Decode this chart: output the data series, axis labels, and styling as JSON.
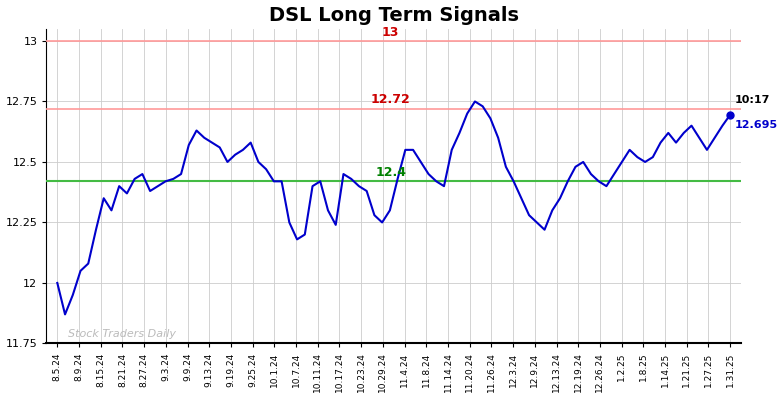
{
  "title": "DSL Long Term Signals",
  "title_fontsize": 14,
  "title_fontweight": "bold",
  "background_color": "#ffffff",
  "line_color": "#0000cc",
  "line_width": 1.5,
  "ylim": [
    11.75,
    13.05
  ],
  "yticks": [
    11.75,
    12.0,
    12.25,
    12.5,
    12.75,
    13.0
  ],
  "ytick_labels": [
    "11.75",
    "12",
    "12.25",
    "12.5",
    "12.75",
    "13"
  ],
  "red_line_1": 13.0,
  "red_line_2": 12.72,
  "green_line": 12.42,
  "red_label_1": "13",
  "red_label_2": "12.72",
  "green_label": "12.4",
  "annotation_time": "10:17",
  "annotation_value": "12.695",
  "watermark": "Stock Traders Daily",
  "x_labels": [
    "8.5.24",
    "8.9.24",
    "8.15.24",
    "8.21.24",
    "8.27.24",
    "9.3.24",
    "9.9.24",
    "9.13.24",
    "9.19.24",
    "9.25.24",
    "10.1.24",
    "10.7.24",
    "10.11.24",
    "10.17.24",
    "10.23.24",
    "10.29.24",
    "11.4.24",
    "11.8.24",
    "11.14.24",
    "11.20.24",
    "11.26.24",
    "12.3.24",
    "12.9.24",
    "12.13.24",
    "12.19.24",
    "12.26.24",
    "1.2.25",
    "1.8.25",
    "1.14.25",
    "1.21.25",
    "1.27.25",
    "1.31.25"
  ],
  "y_values": [
    12.0,
    11.87,
    11.95,
    12.05,
    12.08,
    12.22,
    12.35,
    12.3,
    12.4,
    12.37,
    12.43,
    12.45,
    12.38,
    12.4,
    12.42,
    12.43,
    12.45,
    12.57,
    12.63,
    12.6,
    12.58,
    12.56,
    12.5,
    12.53,
    12.55,
    12.58,
    12.5,
    12.47,
    12.42,
    12.42,
    12.25,
    12.18,
    12.2,
    12.4,
    12.42,
    12.3,
    12.24,
    12.45,
    12.43,
    12.4,
    12.38,
    12.28,
    12.25,
    12.3,
    12.43,
    12.55,
    12.55,
    12.5,
    12.45,
    12.42,
    12.4,
    12.55,
    12.62,
    12.7,
    12.75,
    12.73,
    12.68,
    12.6,
    12.48,
    12.42,
    12.35,
    12.28,
    12.25,
    12.22,
    12.3,
    12.35,
    12.42,
    12.48,
    12.5,
    12.45,
    12.42,
    12.4,
    12.45,
    12.5,
    12.55,
    12.52,
    12.5,
    12.52,
    12.58,
    12.62,
    12.58,
    12.62,
    12.65,
    12.6,
    12.55,
    12.6,
    12.65,
    12.695
  ],
  "grid_color": "#cccccc",
  "label_red_color": "#cc0000",
  "label_green_color": "#008000",
  "red_line_color": "#ff9999",
  "green_line_color": "#44bb44"
}
